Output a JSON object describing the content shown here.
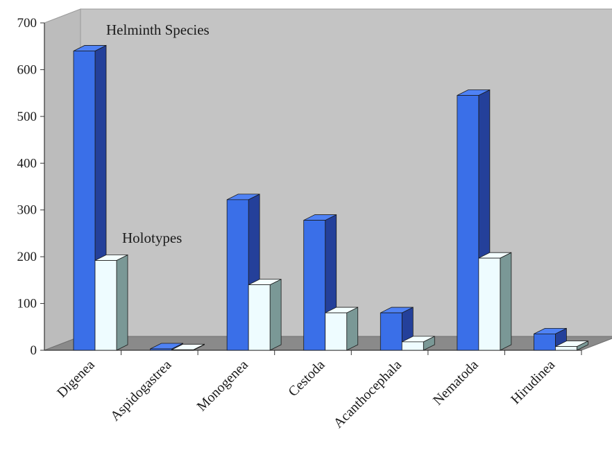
{
  "chart_data": {
    "type": "bar",
    "style": "3d-clustered",
    "categories": [
      "Digenea",
      "Aspidogastrea",
      "Monogenea",
      "Cestoda",
      "Acanthocephala",
      "Nematoda",
      "Hirudinea"
    ],
    "series": [
      {
        "name": "Helminth Species",
        "values": [
          640,
          3,
          322,
          278,
          80,
          545,
          35
        ],
        "color": "#3a6fe8"
      },
      {
        "name": "Holotypes",
        "values": [
          192,
          1,
          140,
          80,
          18,
          197,
          8
        ],
        "color": "#eefcff"
      }
    ],
    "ylim": [
      0,
      700
    ],
    "yticks": [
      0,
      100,
      200,
      300,
      400,
      500,
      600,
      700
    ],
    "grid": false,
    "legend": "inline labels",
    "colors": {
      "wall": "#c4c4c4",
      "floor": "#8a8a8a"
    }
  }
}
